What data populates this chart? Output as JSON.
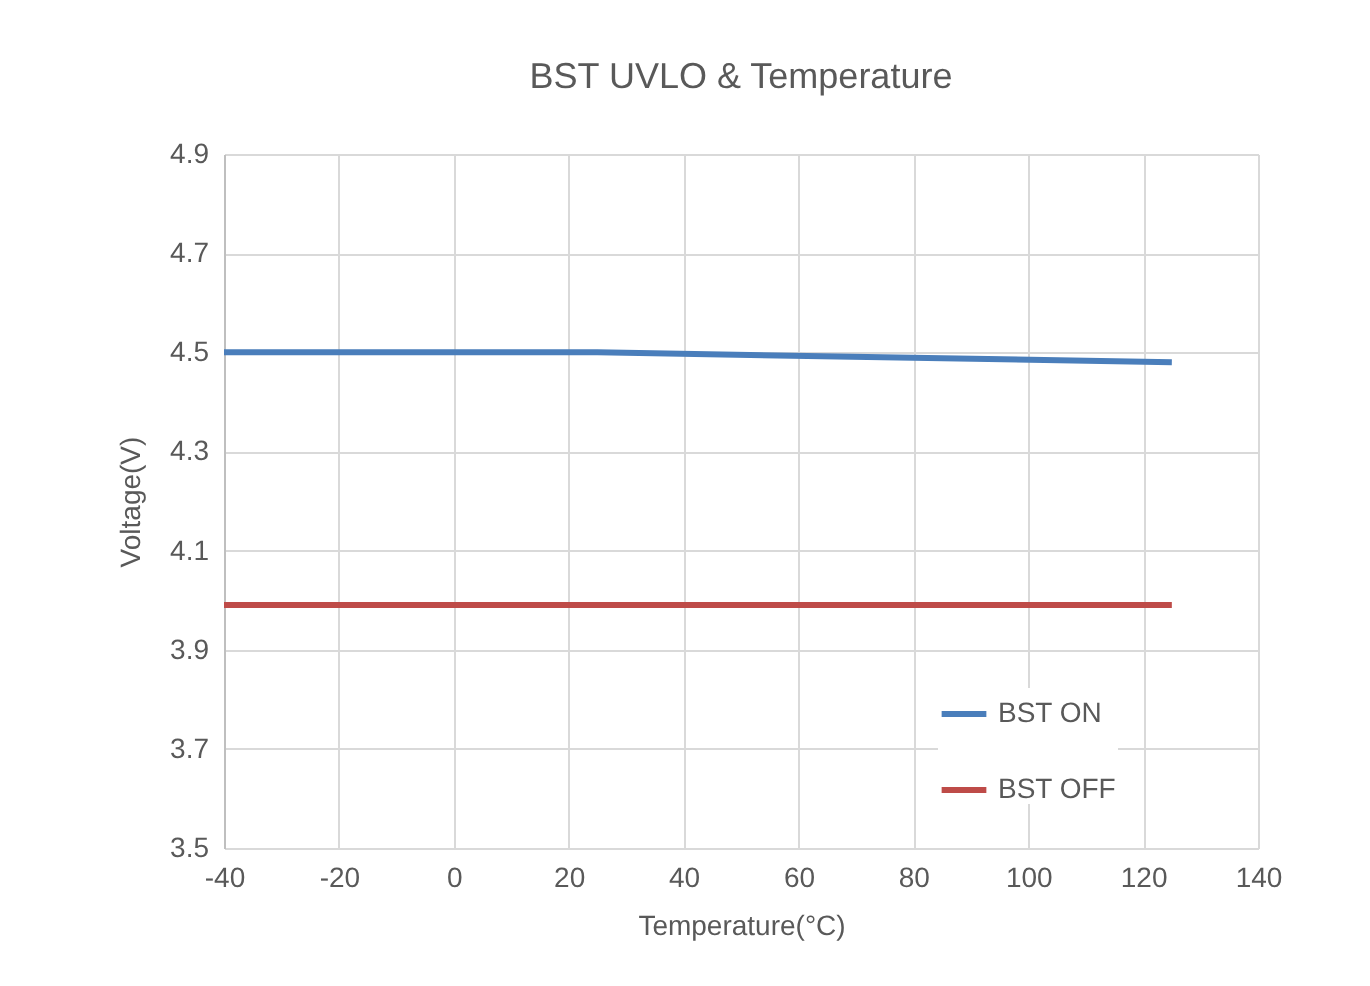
{
  "chart_data": {
    "type": "line",
    "title": "BST UVLO & Temperature",
    "xlabel": "Temperature(°C)",
    "ylabel": "Voltage(V)",
    "x": [
      -40,
      25,
      125
    ],
    "series": [
      {
        "name": "BST ON",
        "color": "#4a7ebb",
        "values": [
          4.5,
          4.5,
          4.48
        ]
      },
      {
        "name": "BST OFF",
        "color": "#be4b48",
        "values": [
          3.99,
          3.99,
          3.99
        ]
      }
    ],
    "xlim": [
      -40,
      140
    ],
    "xticks": [
      -40,
      -20,
      0,
      20,
      40,
      60,
      80,
      100,
      120,
      140
    ],
    "ylim": [
      3.5,
      4.9
    ],
    "yticks": [
      {
        "value": 3.5,
        "label": "3.5"
      },
      {
        "value": 3.7,
        "label": "3.7"
      },
      {
        "value": 3.9,
        "label": "3.9"
      },
      {
        "value": 4.1,
        "label": "4.1"
      },
      {
        "value": 4.3,
        "label": "4.3"
      },
      {
        "value": 4.5,
        "label": "4.5"
      },
      {
        "value": 4.7,
        "label": "4.7"
      },
      {
        "value": 4.9,
        "label": "4.9"
      }
    ],
    "grid": true,
    "legend": "bottom right",
    "marker": "none",
    "line_style": "solid"
  }
}
